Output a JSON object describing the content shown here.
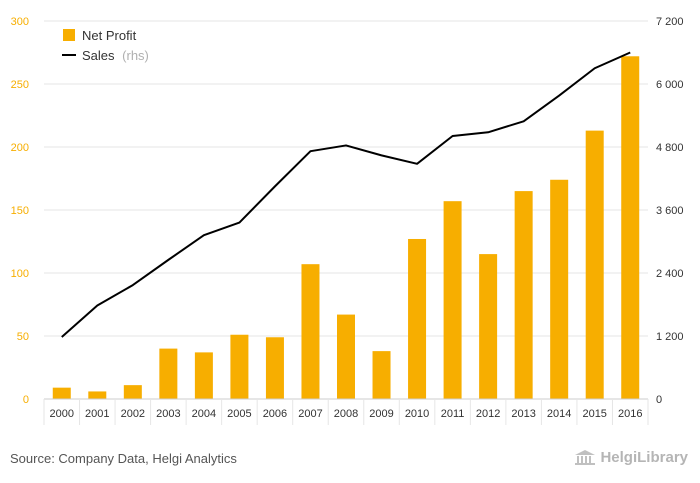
{
  "chart_data": {
    "type": "bar",
    "categories": [
      "2000",
      "2001",
      "2002",
      "2003",
      "2004",
      "2005",
      "2006",
      "2007",
      "2008",
      "2009",
      "2010",
      "2011",
      "2012",
      "2013",
      "2014",
      "2015",
      "2016"
    ],
    "series": [
      {
        "name": "Net Profit",
        "type": "bar",
        "axis": "left",
        "color": "#f7ae00",
        "values": [
          9,
          6,
          11,
          40,
          37,
          51,
          49,
          107,
          67,
          38,
          127,
          157,
          115,
          165,
          174,
          213,
          272
        ]
      },
      {
        "name": "Sales",
        "name_suffix": "(rhs)",
        "type": "line",
        "axis": "right",
        "color": "#000000",
        "values": [
          1180,
          1780,
          2170,
          2650,
          3120,
          3360,
          4050,
          4720,
          4830,
          4640,
          4480,
          5010,
          5080,
          5290,
          5780,
          6300,
          6600
        ]
      }
    ],
    "left_axis": {
      "min": 0,
      "max": 300,
      "ticks": [
        "0",
        "50",
        "100",
        "150",
        "200",
        "250",
        "300"
      ],
      "color": "#f7ae00"
    },
    "right_axis": {
      "min": 0,
      "max": 7200,
      "ticks": [
        "0",
        "1 200",
        "2 400",
        "3 600",
        "4 800",
        "6 000",
        "7 200"
      ]
    },
    "grid": true,
    "legend_position": "top-left"
  },
  "footer": {
    "source": "Source: Company Data, Helgi Analytics",
    "brand": "HelgiLibrary"
  }
}
